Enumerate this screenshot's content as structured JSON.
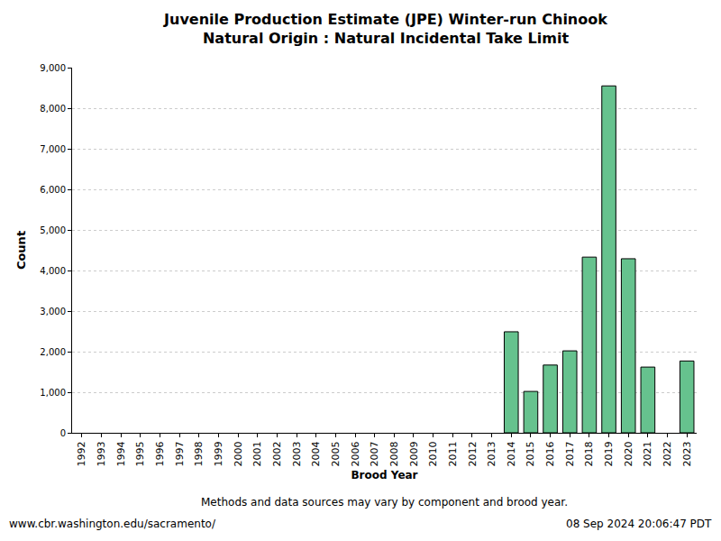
{
  "chart_data": {
    "type": "bar",
    "title": "Juvenile Production Estimate (JPE) Winter-run Chinook",
    "subtitle": "Natural Origin : Natural Incidental Take Limit",
    "x_label": "Brood Year",
    "y_label": "Count",
    "categories": [
      "1992",
      "1993",
      "1994",
      "1995",
      "1996",
      "1997",
      "1998",
      "1999",
      "2000",
      "2001",
      "2002",
      "2003",
      "2004",
      "2005",
      "2006",
      "2007",
      "2008",
      "2009",
      "2010",
      "2011",
      "2012",
      "2013",
      "2014",
      "2015",
      "2016",
      "2017",
      "2018",
      "2019",
      "2020",
      "2021",
      "2022",
      "2023"
    ],
    "values": [
      null,
      null,
      null,
      null,
      null,
      null,
      null,
      null,
      null,
      null,
      null,
      null,
      null,
      null,
      null,
      null,
      null,
      null,
      null,
      null,
      null,
      null,
      2490,
      1020,
      1670,
      2020,
      4330,
      8550,
      4290,
      1620,
      null,
      1770
    ],
    "color": "#66c28e",
    "ylim": [
      0,
      9000
    ],
    "yticks": [
      0,
      {
        "value": 1000,
        "label": "1,000"
      },
      {
        "value": 2000,
        "label": "2,000"
      },
      {
        "value": 3000,
        "label": "3,000"
      },
      {
        "value": 4000,
        "label": "4,000"
      },
      {
        "value": 5000,
        "label": "5,000"
      },
      {
        "value": 6000,
        "label": "6,000"
      },
      {
        "value": 7000,
        "label": "7,000"
      },
      {
        "value": 8000,
        "label": "8,000"
      },
      {
        "value": 9000,
        "label": "9,000"
      }
    ],
    "grid": true,
    "annotations": [
      "Methods and data sources may vary by component and brood year.",
      "www.cbr.washington.edu/sacramento/",
      "08 Sep 2024 20:06:47 PDT"
    ]
  }
}
